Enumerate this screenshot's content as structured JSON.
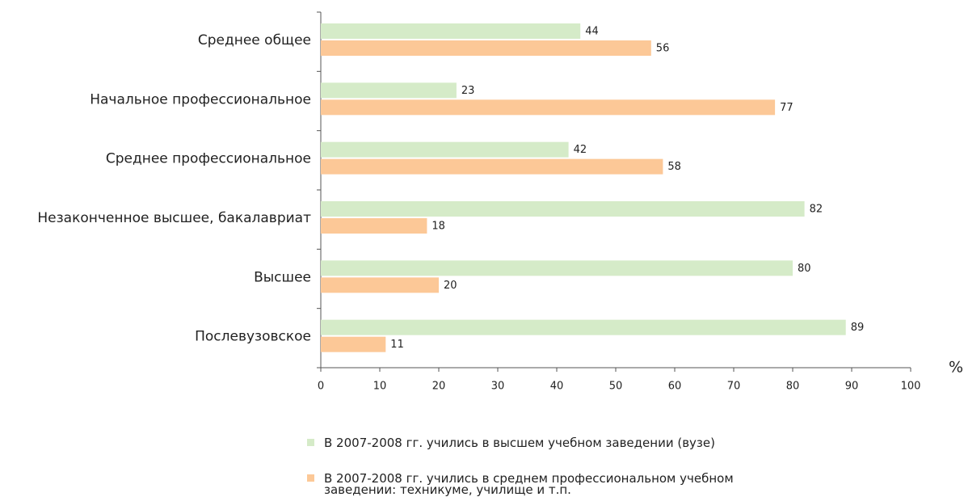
{
  "chart_data": {
    "type": "hbar",
    "categories": [
      "Среднее общее",
      "Начальное профессиональное",
      "Среднее профессиональное",
      "Незаконченное высшее, бакалавриат",
      "Высшее",
      "Послевузовское"
    ],
    "series": [
      {
        "name": "В 2007-2008 гг. учились в высшем учебном заведении (вузе)",
        "color": "#d5ebc8",
        "values": [
          44,
          23,
          42,
          82,
          80,
          89
        ]
      },
      {
        "name": "В 2007-2008 гг. учились в среднем профессиональном учебном заведении: техникуме, училище и т.п.",
        "color": "#fcc897",
        "values": [
          56,
          77,
          58,
          18,
          20,
          11
        ]
      }
    ],
    "x_label": "%",
    "xlim": [
      0,
      100
    ],
    "xticks": [
      0,
      10,
      20,
      30,
      40,
      50,
      60,
      70,
      80,
      90,
      100
    ],
    "legend": "bottom"
  }
}
